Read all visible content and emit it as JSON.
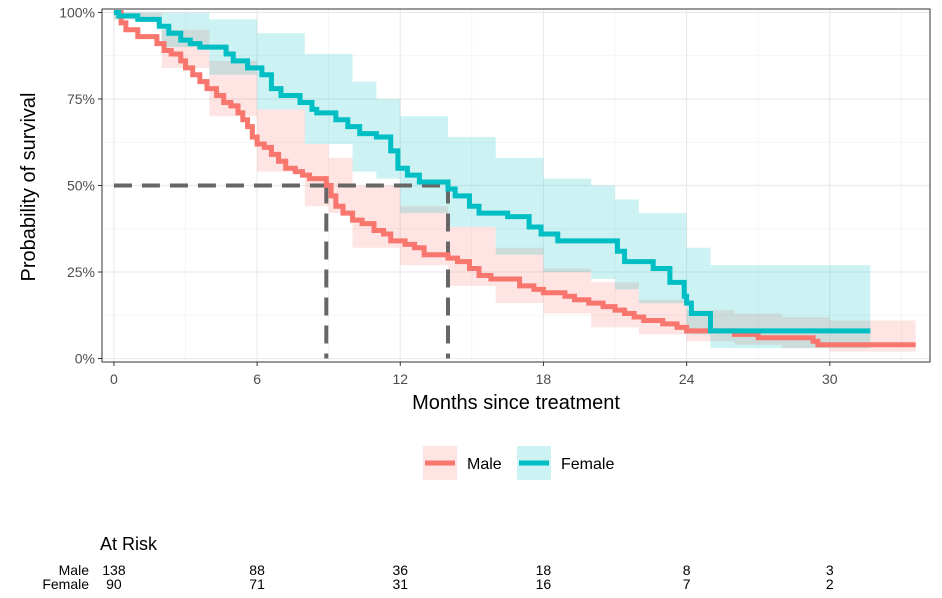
{
  "chart_data": {
    "type": "line",
    "subtype": "kaplan-meier",
    "xlabel": "Months since treatment",
    "ylabel": "Probability of survival",
    "xlim": [
      -0.5,
      34.2
    ],
    "ylim": [
      -0.01,
      1.01
    ],
    "x_ticks": [
      0,
      6,
      12,
      18,
      24,
      30
    ],
    "y_ticks": [
      0,
      0.25,
      0.5,
      0.75,
      1.0
    ],
    "y_tick_labels": [
      "0%",
      "25%",
      "50%",
      "75%",
      "100%"
    ],
    "grid": true,
    "legend_position": "bottom",
    "median_lines": {
      "y": 0.5,
      "x": [
        8.9,
        14.0
      ],
      "color": "#666666"
    },
    "series": [
      {
        "name": "Male",
        "color": "#F8766D",
        "band_color": "#F8766D",
        "steps": [
          [
            0,
            1.0
          ],
          [
            0.3,
            0.97
          ],
          [
            0.5,
            0.95
          ],
          [
            1.0,
            0.93
          ],
          [
            1.8,
            0.91
          ],
          [
            2.1,
            0.89
          ],
          [
            2.4,
            0.88
          ],
          [
            2.8,
            0.86
          ],
          [
            3.0,
            0.84
          ],
          [
            3.3,
            0.82
          ],
          [
            3.6,
            0.8
          ],
          [
            3.9,
            0.78
          ],
          [
            4.3,
            0.76
          ],
          [
            4.6,
            0.74
          ],
          [
            4.9,
            0.73
          ],
          [
            5.2,
            0.71
          ],
          [
            5.4,
            0.69
          ],
          [
            5.6,
            0.67
          ],
          [
            5.8,
            0.64
          ],
          [
            6.0,
            0.62
          ],
          [
            6.3,
            0.61
          ],
          [
            6.6,
            0.59
          ],
          [
            6.9,
            0.57
          ],
          [
            7.2,
            0.55
          ],
          [
            7.6,
            0.54
          ],
          [
            7.9,
            0.53
          ],
          [
            8.2,
            0.52
          ],
          [
            8.9,
            0.5
          ],
          [
            9.1,
            0.47
          ],
          [
            9.3,
            0.44
          ],
          [
            9.6,
            0.42
          ],
          [
            10.0,
            0.4
          ],
          [
            10.4,
            0.39
          ],
          [
            10.9,
            0.37
          ],
          [
            11.3,
            0.36
          ],
          [
            11.6,
            0.34
          ],
          [
            12.2,
            0.33
          ],
          [
            12.6,
            0.32
          ],
          [
            13.0,
            0.3
          ],
          [
            14.0,
            0.29
          ],
          [
            14.4,
            0.28
          ],
          [
            14.9,
            0.26
          ],
          [
            15.3,
            0.24
          ],
          [
            15.8,
            0.23
          ],
          [
            17.0,
            0.21
          ],
          [
            17.6,
            0.2
          ],
          [
            18.0,
            0.19
          ],
          [
            18.9,
            0.18
          ],
          [
            19.3,
            0.17
          ],
          [
            19.9,
            0.16
          ],
          [
            20.5,
            0.15
          ],
          [
            21.0,
            0.14
          ],
          [
            21.4,
            0.13
          ],
          [
            21.8,
            0.12
          ],
          [
            22.2,
            0.11
          ],
          [
            23.0,
            0.1
          ],
          [
            23.6,
            0.09
          ],
          [
            24.0,
            0.08
          ],
          [
            26.0,
            0.07
          ],
          [
            27.0,
            0.06
          ],
          [
            29.3,
            0.05
          ],
          [
            29.5,
            0.04
          ],
          [
            33.6,
            0.04
          ]
        ],
        "band_upper": [
          [
            0,
            1.0
          ],
          [
            2.0,
            0.95
          ],
          [
            4.0,
            0.86
          ],
          [
            6.0,
            0.72
          ],
          [
            8.0,
            0.62
          ],
          [
            9.0,
            0.58
          ],
          [
            10.0,
            0.5
          ],
          [
            12.0,
            0.44
          ],
          [
            14.0,
            0.38
          ],
          [
            16.0,
            0.32
          ],
          [
            18.0,
            0.26
          ],
          [
            20.0,
            0.22
          ],
          [
            22.0,
            0.17
          ],
          [
            24.0,
            0.14
          ],
          [
            26.0,
            0.13
          ],
          [
            28.0,
            0.12
          ],
          [
            30.0,
            0.11
          ],
          [
            33.6,
            0.12
          ]
        ],
        "band_lower": [
          [
            0,
            0.98
          ],
          [
            2.0,
            0.84
          ],
          [
            4.0,
            0.7
          ],
          [
            6.0,
            0.54
          ],
          [
            8.0,
            0.44
          ],
          [
            9.0,
            0.42
          ],
          [
            10.0,
            0.32
          ],
          [
            12.0,
            0.27
          ],
          [
            14.0,
            0.21
          ],
          [
            16.0,
            0.16
          ],
          [
            18.0,
            0.13
          ],
          [
            20.0,
            0.09
          ],
          [
            22.0,
            0.07
          ],
          [
            24.0,
            0.05
          ],
          [
            26.0,
            0.04
          ],
          [
            28.0,
            0.03
          ],
          [
            30.0,
            0.02
          ],
          [
            33.6,
            0.02
          ]
        ]
      },
      {
        "name": "Female",
        "color": "#00BFC4",
        "band_color": "#00BFC4",
        "steps": [
          [
            0,
            1.0
          ],
          [
            0.2,
            0.99
          ],
          [
            1.0,
            0.98
          ],
          [
            1.9,
            0.96
          ],
          [
            2.3,
            0.94
          ],
          [
            2.8,
            0.92
          ],
          [
            3.2,
            0.91
          ],
          [
            3.6,
            0.9
          ],
          [
            4.7,
            0.88
          ],
          [
            5.0,
            0.86
          ],
          [
            5.6,
            0.84
          ],
          [
            6.2,
            0.82
          ],
          [
            6.6,
            0.78
          ],
          [
            7.0,
            0.76
          ],
          [
            7.8,
            0.74
          ],
          [
            8.3,
            0.72
          ],
          [
            8.5,
            0.71
          ],
          [
            9.3,
            0.69
          ],
          [
            9.8,
            0.67
          ],
          [
            10.3,
            0.65
          ],
          [
            11.0,
            0.64
          ],
          [
            11.6,
            0.6
          ],
          [
            11.9,
            0.55
          ],
          [
            12.3,
            0.53
          ],
          [
            12.8,
            0.51
          ],
          [
            14.0,
            0.49
          ],
          [
            14.3,
            0.47
          ],
          [
            14.9,
            0.44
          ],
          [
            15.3,
            0.42
          ],
          [
            16.5,
            0.41
          ],
          [
            17.4,
            0.38
          ],
          [
            17.9,
            0.36
          ],
          [
            18.6,
            0.34
          ],
          [
            21.1,
            0.31
          ],
          [
            21.4,
            0.28
          ],
          [
            22.6,
            0.26
          ],
          [
            23.3,
            0.22
          ],
          [
            23.9,
            0.18
          ],
          [
            24.0,
            0.16
          ],
          [
            24.2,
            0.13
          ],
          [
            25.0,
            0.08
          ],
          [
            31.7,
            0.08
          ]
        ],
        "band_upper": [
          [
            0,
            1.0
          ],
          [
            2.0,
            1.0
          ],
          [
            4.0,
            0.98
          ],
          [
            6.0,
            0.94
          ],
          [
            8.0,
            0.88
          ],
          [
            10.0,
            0.8
          ],
          [
            11.0,
            0.75
          ],
          [
            12.0,
            0.7
          ],
          [
            14.0,
            0.64
          ],
          [
            16.0,
            0.58
          ],
          [
            18.0,
            0.52
          ],
          [
            20.0,
            0.5
          ],
          [
            21.0,
            0.46
          ],
          [
            22.0,
            0.42
          ],
          [
            24.0,
            0.32
          ],
          [
            25.0,
            0.27
          ],
          [
            31.7,
            0.27
          ]
        ],
        "band_lower": [
          [
            0,
            0.98
          ],
          [
            2.0,
            0.9
          ],
          [
            4.0,
            0.82
          ],
          [
            6.0,
            0.72
          ],
          [
            8.0,
            0.62
          ],
          [
            10.0,
            0.54
          ],
          [
            11.0,
            0.52
          ],
          [
            12.0,
            0.42
          ],
          [
            14.0,
            0.38
          ],
          [
            16.0,
            0.3
          ],
          [
            18.0,
            0.25
          ],
          [
            20.0,
            0.23
          ],
          [
            21.0,
            0.2
          ],
          [
            22.0,
            0.16
          ],
          [
            24.0,
            0.07
          ],
          [
            25.0,
            0.03
          ],
          [
            31.7,
            0.03
          ]
        ]
      }
    ],
    "risk_table": {
      "title": "At Risk",
      "times": [
        0,
        6,
        12,
        18,
        24,
        30
      ],
      "rows": [
        {
          "name": "Male",
          "counts": [
            "138",
            "88",
            "36",
            "18",
            "8",
            "3"
          ]
        },
        {
          "name": "Female",
          "counts": [
            "90",
            "71",
            "31",
            "16",
            "7",
            "2"
          ]
        }
      ]
    }
  }
}
